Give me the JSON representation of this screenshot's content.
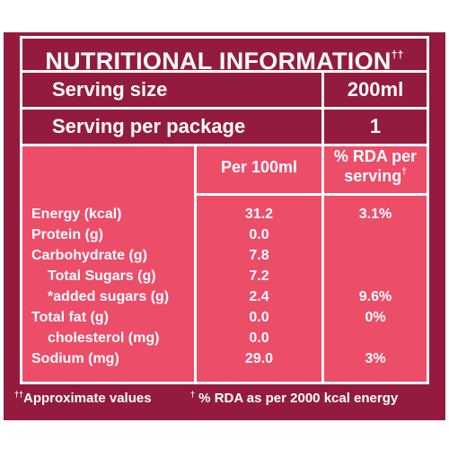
{
  "label": {
    "title": "NUTRITIONAL INFORMATION",
    "title_mark": "††",
    "serving_size": {
      "label": "Serving size",
      "value": "200ml"
    },
    "serving_per_package": {
      "label": "Serving per package",
      "value": "1"
    },
    "columns": {
      "per_100ml": "Per 100ml",
      "rda_line1": "% RDA per",
      "rda_line2": "serving",
      "rda_mark": "†"
    },
    "nutrients": [
      {
        "name": "Energy (kcal)",
        "per_100ml": "31.2",
        "rda": "3.1%"
      },
      {
        "name": "Protein (g)",
        "per_100ml": "0.0",
        "rda": ""
      },
      {
        "name": "Carbohydrate (g)",
        "per_100ml": "7.8",
        "rda": ""
      },
      {
        "name": "Total Sugars (g)",
        "per_100ml": "7.2",
        "rda": ""
      },
      {
        "name": "*added sugars (g)",
        "per_100ml": "2.4",
        "rda": "9.6%"
      },
      {
        "name": "Total fat (g)",
        "per_100ml": "0.0",
        "rda": "0%"
      },
      {
        "name": "cholesterol (mg)",
        "per_100ml": "0.0",
        "rda": ""
      },
      {
        "name": "Sodium (mg)",
        "per_100ml": "29.0",
        "rda": "3%"
      }
    ],
    "footnotes": {
      "approx_mark": "††",
      "approx_text": "Approximate values",
      "rda_mark": "†",
      "rda_text": " % RDA as per 2000 kcal energy"
    },
    "colors": {
      "dark": "#941b3f",
      "light": "#ec4d68",
      "text": "#ffffff"
    }
  }
}
